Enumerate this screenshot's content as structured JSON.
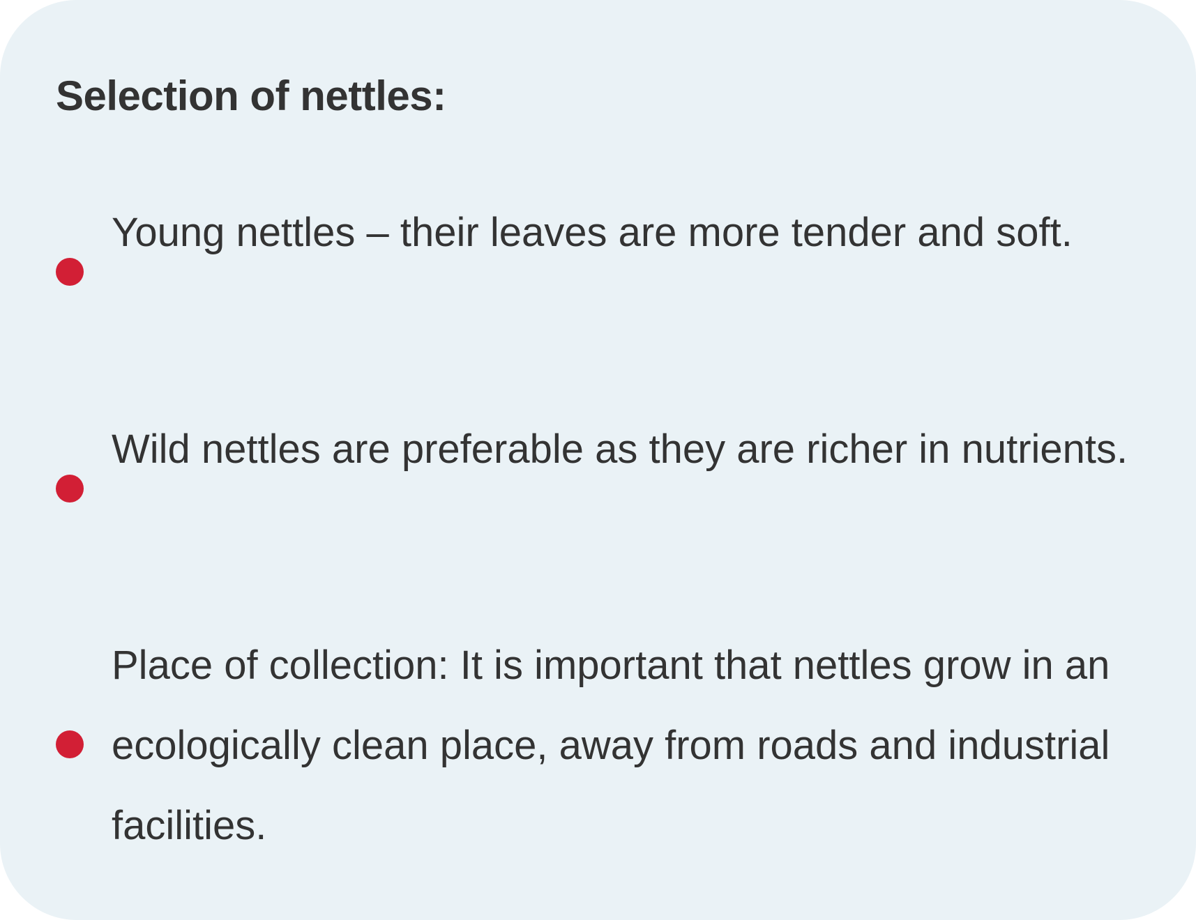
{
  "card": {
    "heading": "Selection of nettles:",
    "bullet_color": "#d21f35",
    "background_color": "#eaf2f6",
    "items": [
      {
        "text": " Young nettles – their leaves are more tender and soft."
      },
      {
        "text": "Wild nettles are preferable as they are richer in nutrients."
      },
      {
        "text": "Place of collection: It is important that nettles grow in an ecologically clean place, away from roads and industrial facilities."
      }
    ]
  }
}
